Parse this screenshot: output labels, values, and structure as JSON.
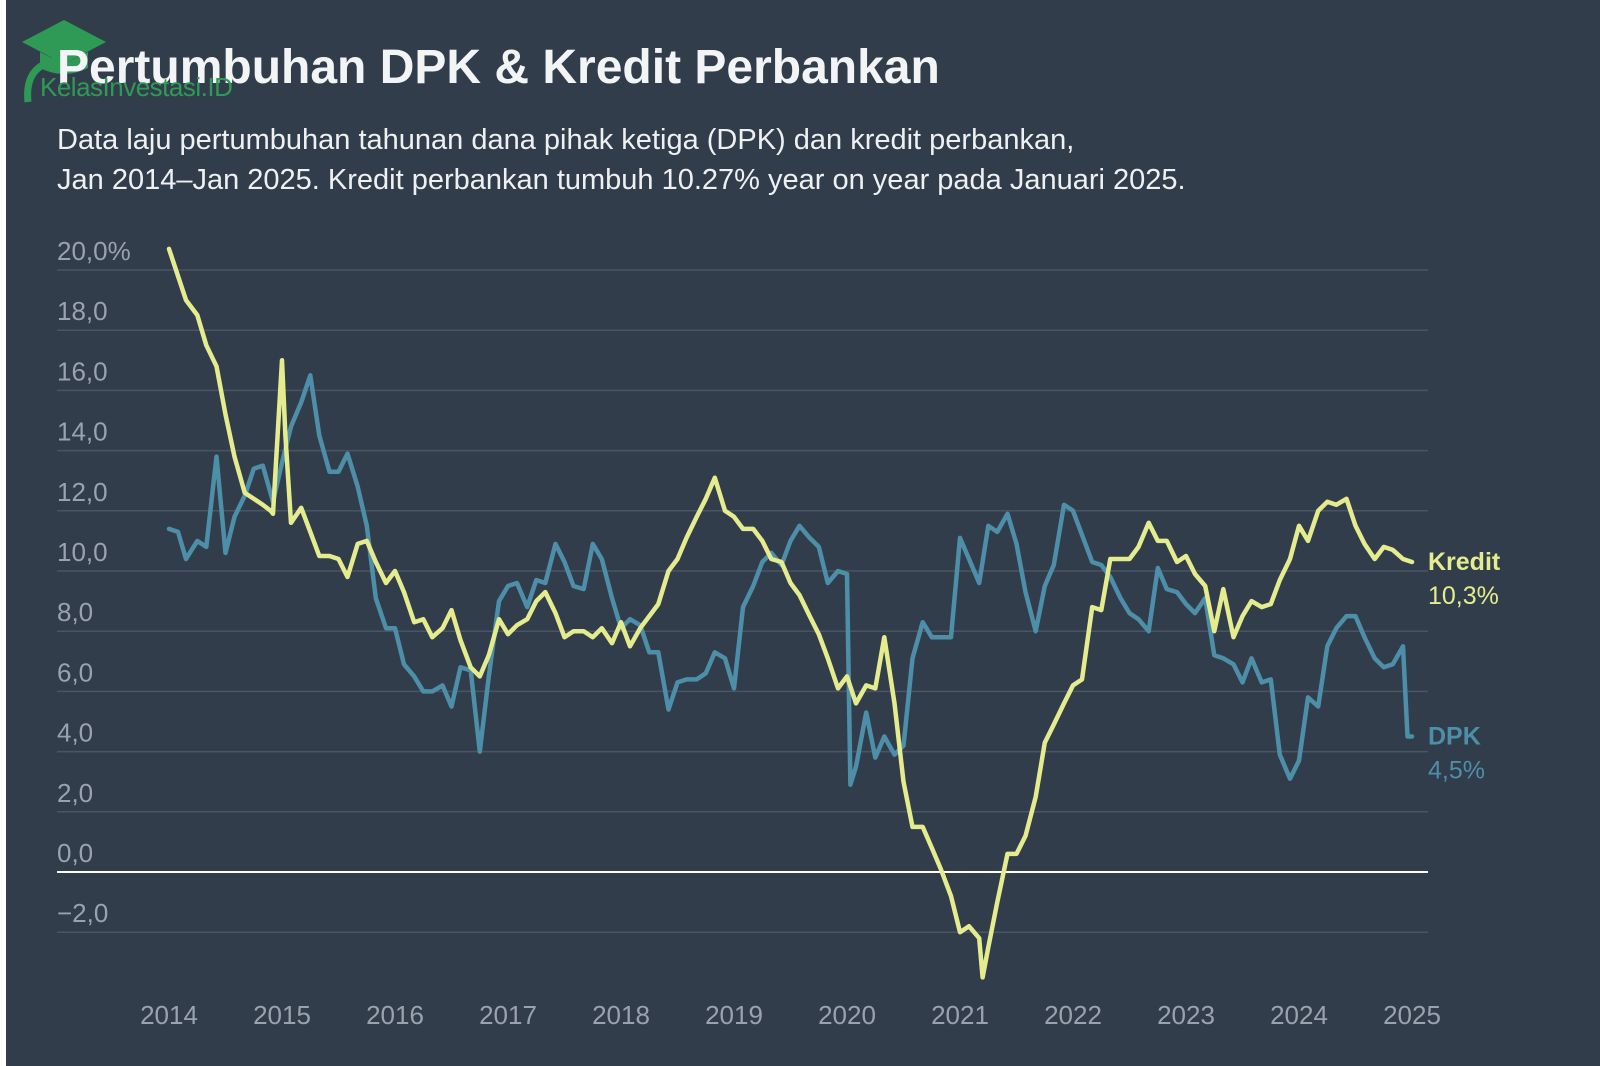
{
  "header": {
    "logo_text": "KelasInvestasi.ID",
    "title": "Pertumbuhan DPK & Kredit Perbankan",
    "subtitle_line1": "Data laju pertumbuhan tahunan dana pihak ketiga (DPK) dan kredit perbankan,",
    "subtitle_line2": "Jan 2014–Jan 2025. Kredit perbankan tumbuh 10.27% year on year pada Januari 2025."
  },
  "colors": {
    "background": "#323d4b",
    "kredit": "#e5ec8e",
    "dpk": "#4d8ea8",
    "grid": "#4a5563",
    "zero_line": "#ffffff",
    "tick_text": "#9aa2ad",
    "logo": "#2f9a55"
  },
  "chart_data": {
    "type": "line",
    "title": "Pertumbuhan DPK & Kredit Perbankan",
    "xlabel": "",
    "ylabel": "",
    "xlim": [
      2014,
      2025
    ],
    "ylim": [
      -4,
      21
    ],
    "grid": true,
    "y_ticks": [
      {
        "value": 20,
        "label": "20,0%"
      },
      {
        "value": 18,
        "label": "18,0"
      },
      {
        "value": 16,
        "label": "16,0"
      },
      {
        "value": 14,
        "label": "14,0"
      },
      {
        "value": 12,
        "label": "12,0"
      },
      {
        "value": 10,
        "label": "10,0"
      },
      {
        "value": 8,
        "label": "8,0"
      },
      {
        "value": 6,
        "label": "6,0"
      },
      {
        "value": 4,
        "label": "4,0"
      },
      {
        "value": 2,
        "label": "2,0"
      },
      {
        "value": 0,
        "label": "0,0"
      },
      {
        "value": -2,
        "label": "−2,0"
      }
    ],
    "x_ticks": [
      "2014",
      "2015",
      "2016",
      "2017",
      "2018",
      "2019",
      "2020",
      "2021",
      "2022",
      "2023",
      "2024",
      "2025"
    ],
    "series": [
      {
        "name": "Kredit",
        "end_label": "10,3%",
        "color": "#e5ec8e",
        "points": [
          [
            2014.0,
            20.7
          ],
          [
            2014.08,
            19.8
          ],
          [
            2014.15,
            19.0
          ],
          [
            2014.25,
            18.5
          ],
          [
            2014.33,
            17.5
          ],
          [
            2014.42,
            16.8
          ],
          [
            2014.5,
            15.2
          ],
          [
            2014.58,
            13.8
          ],
          [
            2014.67,
            12.6
          ],
          [
            2014.75,
            12.4
          ],
          [
            2014.83,
            12.2
          ],
          [
            2014.9,
            12.0
          ],
          [
            2014.92,
            11.9
          ],
          [
            2015.0,
            17.0
          ],
          [
            2015.03,
            14.5
          ],
          [
            2015.08,
            11.6
          ],
          [
            2015.17,
            12.1
          ],
          [
            2015.25,
            11.3
          ],
          [
            2015.33,
            10.5
          ],
          [
            2015.42,
            10.5
          ],
          [
            2015.5,
            10.4
          ],
          [
            2015.58,
            9.8
          ],
          [
            2015.67,
            10.9
          ],
          [
            2015.75,
            11.0
          ],
          [
            2015.83,
            10.3
          ],
          [
            2015.92,
            9.6
          ],
          [
            2016.0,
            10.0
          ],
          [
            2016.08,
            9.3
          ],
          [
            2016.17,
            8.3
          ],
          [
            2016.25,
            8.4
          ],
          [
            2016.33,
            7.8
          ],
          [
            2016.42,
            8.1
          ],
          [
            2016.5,
            8.7
          ],
          [
            2016.58,
            7.7
          ],
          [
            2016.67,
            6.8
          ],
          [
            2016.75,
            6.5
          ],
          [
            2016.83,
            7.2
          ],
          [
            2016.92,
            8.4
          ],
          [
            2017.0,
            7.9
          ],
          [
            2017.08,
            8.2
          ],
          [
            2017.17,
            8.4
          ],
          [
            2017.25,
            9.0
          ],
          [
            2017.33,
            9.3
          ],
          [
            2017.42,
            8.6
          ],
          [
            2017.5,
            7.8
          ],
          [
            2017.58,
            8.0
          ],
          [
            2017.67,
            8.0
          ],
          [
            2017.75,
            7.8
          ],
          [
            2017.83,
            8.1
          ],
          [
            2017.92,
            7.6
          ],
          [
            2018.0,
            8.3
          ],
          [
            2018.08,
            7.5
          ],
          [
            2018.17,
            8.1
          ],
          [
            2018.25,
            8.5
          ],
          [
            2018.33,
            8.9
          ],
          [
            2018.42,
            10.0
          ],
          [
            2018.5,
            10.4
          ],
          [
            2018.58,
            11.1
          ],
          [
            2018.67,
            11.8
          ],
          [
            2018.75,
            12.4
          ],
          [
            2018.83,
            13.1
          ],
          [
            2018.92,
            12.0
          ],
          [
            2019.0,
            11.8
          ],
          [
            2019.08,
            11.4
          ],
          [
            2019.17,
            11.4
          ],
          [
            2019.25,
            11.0
          ],
          [
            2019.33,
            10.4
          ],
          [
            2019.42,
            10.3
          ],
          [
            2019.5,
            9.6
          ],
          [
            2019.58,
            9.2
          ],
          [
            2019.67,
            8.5
          ],
          [
            2019.75,
            7.9
          ],
          [
            2019.83,
            7.1
          ],
          [
            2019.92,
            6.1
          ],
          [
            2020.0,
            6.5
          ],
          [
            2020.08,
            5.6
          ],
          [
            2020.17,
            6.2
          ],
          [
            2020.25,
            6.1
          ],
          [
            2020.33,
            7.8
          ],
          [
            2020.42,
            5.6
          ],
          [
            2020.5,
            3.0
          ],
          [
            2020.58,
            1.5
          ],
          [
            2020.67,
            1.5
          ],
          [
            2020.75,
            0.8
          ],
          [
            2020.83,
            0.1
          ],
          [
            2020.92,
            -0.8
          ],
          [
            2021.0,
            -2.0
          ],
          [
            2021.08,
            -1.8
          ],
          [
            2021.17,
            -2.2
          ],
          [
            2021.2,
            -3.5
          ],
          [
            2021.25,
            -2.5
          ],
          [
            2021.33,
            -1.0
          ],
          [
            2021.42,
            0.6
          ],
          [
            2021.5,
            0.6
          ],
          [
            2021.58,
            1.2
          ],
          [
            2021.67,
            2.5
          ],
          [
            2021.75,
            4.3
          ],
          [
            2021.83,
            4.9
          ],
          [
            2021.92,
            5.6
          ],
          [
            2022.0,
            6.2
          ],
          [
            2022.08,
            6.4
          ],
          [
            2022.17,
            8.8
          ],
          [
            2022.25,
            8.7
          ],
          [
            2022.33,
            10.4
          ],
          [
            2022.42,
            10.4
          ],
          [
            2022.5,
            10.4
          ],
          [
            2022.58,
            10.8
          ],
          [
            2022.67,
            11.6
          ],
          [
            2022.75,
            11.0
          ],
          [
            2022.83,
            11.0
          ],
          [
            2022.92,
            10.3
          ],
          [
            2023.0,
            10.5
          ],
          [
            2023.08,
            9.9
          ],
          [
            2023.17,
            9.5
          ],
          [
            2023.25,
            8.0
          ],
          [
            2023.33,
            9.4
          ],
          [
            2023.42,
            7.8
          ],
          [
            2023.5,
            8.5
          ],
          [
            2023.58,
            9.0
          ],
          [
            2023.67,
            8.8
          ],
          [
            2023.75,
            8.9
          ],
          [
            2023.83,
            9.7
          ],
          [
            2023.92,
            10.4
          ],
          [
            2024.0,
            11.5
          ],
          [
            2024.08,
            11.0
          ],
          [
            2024.17,
            12.0
          ],
          [
            2024.25,
            12.3
          ],
          [
            2024.33,
            12.2
          ],
          [
            2024.42,
            12.4
          ],
          [
            2024.5,
            11.5
          ],
          [
            2024.58,
            10.9
          ],
          [
            2024.67,
            10.4
          ],
          [
            2024.75,
            10.8
          ],
          [
            2024.83,
            10.7
          ],
          [
            2024.92,
            10.4
          ],
          [
            2025.0,
            10.3
          ]
        ]
      },
      {
        "name": "DPK",
        "end_label": "4,5%",
        "color": "#4d8ea8",
        "points": [
          [
            2014.0,
            11.4
          ],
          [
            2014.08,
            11.3
          ],
          [
            2014.15,
            10.4
          ],
          [
            2014.25,
            11.0
          ],
          [
            2014.33,
            10.8
          ],
          [
            2014.42,
            13.8
          ],
          [
            2014.5,
            10.6
          ],
          [
            2014.58,
            11.8
          ],
          [
            2014.67,
            12.5
          ],
          [
            2014.75,
            13.4
          ],
          [
            2014.83,
            13.5
          ],
          [
            2014.92,
            12.3
          ],
          [
            2015.0,
            13.6
          ],
          [
            2015.08,
            14.8
          ],
          [
            2015.17,
            15.6
          ],
          [
            2015.25,
            16.5
          ],
          [
            2015.33,
            14.5
          ],
          [
            2015.42,
            13.3
          ],
          [
            2015.5,
            13.3
          ],
          [
            2015.58,
            13.9
          ],
          [
            2015.67,
            12.8
          ],
          [
            2015.75,
            11.5
          ],
          [
            2015.83,
            9.1
          ],
          [
            2015.92,
            8.1
          ],
          [
            2016.0,
            8.1
          ],
          [
            2016.08,
            6.9
          ],
          [
            2016.17,
            6.5
          ],
          [
            2016.25,
            6.0
          ],
          [
            2016.33,
            6.0
          ],
          [
            2016.42,
            6.2
          ],
          [
            2016.5,
            5.5
          ],
          [
            2016.58,
            6.8
          ],
          [
            2016.67,
            6.7
          ],
          [
            2016.75,
            4.0
          ],
          [
            2016.83,
            6.5
          ],
          [
            2016.92,
            9.0
          ],
          [
            2017.0,
            9.5
          ],
          [
            2017.08,
            9.6
          ],
          [
            2017.17,
            8.8
          ],
          [
            2017.25,
            9.7
          ],
          [
            2017.33,
            9.6
          ],
          [
            2017.42,
            10.9
          ],
          [
            2017.5,
            10.3
          ],
          [
            2017.58,
            9.5
          ],
          [
            2017.67,
            9.4
          ],
          [
            2017.75,
            10.9
          ],
          [
            2017.83,
            10.4
          ],
          [
            2017.92,
            9.1
          ],
          [
            2018.0,
            8.1
          ],
          [
            2018.08,
            8.4
          ],
          [
            2018.17,
            8.2
          ],
          [
            2018.25,
            7.3
          ],
          [
            2018.33,
            7.3
          ],
          [
            2018.42,
            5.4
          ],
          [
            2018.5,
            6.3
          ],
          [
            2018.58,
            6.4
          ],
          [
            2018.67,
            6.4
          ],
          [
            2018.75,
            6.6
          ],
          [
            2018.83,
            7.3
          ],
          [
            2018.92,
            7.1
          ],
          [
            2019.0,
            6.1
          ],
          [
            2019.08,
            8.8
          ],
          [
            2019.17,
            9.5
          ],
          [
            2019.25,
            10.3
          ],
          [
            2019.33,
            10.6
          ],
          [
            2019.42,
            10.2
          ],
          [
            2019.5,
            11.0
          ],
          [
            2019.58,
            11.5
          ],
          [
            2019.67,
            11.1
          ],
          [
            2019.75,
            10.8
          ],
          [
            2019.83,
            9.6
          ],
          [
            2019.92,
            10.0
          ],
          [
            2020.0,
            9.9
          ],
          [
            2020.03,
            2.9
          ],
          [
            2020.08,
            3.5
          ],
          [
            2020.17,
            5.3
          ],
          [
            2020.25,
            3.8
          ],
          [
            2020.33,
            4.5
          ],
          [
            2020.42,
            3.9
          ],
          [
            2020.5,
            4.2
          ],
          [
            2020.58,
            7.1
          ],
          [
            2020.67,
            8.3
          ],
          [
            2020.75,
            7.8
          ],
          [
            2020.83,
            7.8
          ],
          [
            2020.92,
            7.8
          ],
          [
            2021.0,
            11.1
          ],
          [
            2021.08,
            10.4
          ],
          [
            2021.17,
            9.6
          ],
          [
            2021.25,
            11.5
          ],
          [
            2021.33,
            11.3
          ],
          [
            2021.42,
            11.9
          ],
          [
            2021.5,
            10.9
          ],
          [
            2021.58,
            9.3
          ],
          [
            2021.67,
            8.0
          ],
          [
            2021.75,
            9.5
          ],
          [
            2021.83,
            10.2
          ],
          [
            2021.92,
            12.2
          ],
          [
            2022.0,
            12.0
          ],
          [
            2022.08,
            11.2
          ],
          [
            2022.17,
            10.3
          ],
          [
            2022.25,
            10.2
          ],
          [
            2022.33,
            9.8
          ],
          [
            2022.42,
            9.1
          ],
          [
            2022.5,
            8.6
          ],
          [
            2022.58,
            8.4
          ],
          [
            2022.67,
            8.0
          ],
          [
            2022.75,
            10.1
          ],
          [
            2022.83,
            9.4
          ],
          [
            2022.92,
            9.3
          ],
          [
            2023.0,
            8.9
          ],
          [
            2023.08,
            8.6
          ],
          [
            2023.17,
            9.1
          ],
          [
            2023.25,
            7.2
          ],
          [
            2023.33,
            7.1
          ],
          [
            2023.42,
            6.9
          ],
          [
            2023.5,
            6.3
          ],
          [
            2023.58,
            7.1
          ],
          [
            2023.67,
            6.3
          ],
          [
            2023.75,
            6.4
          ],
          [
            2023.83,
            3.9
          ],
          [
            2023.92,
            3.1
          ],
          [
            2024.0,
            3.7
          ],
          [
            2024.08,
            5.8
          ],
          [
            2024.17,
            5.5
          ],
          [
            2024.25,
            7.5
          ],
          [
            2024.33,
            8.1
          ],
          [
            2024.42,
            8.5
          ],
          [
            2024.5,
            8.5
          ],
          [
            2024.58,
            7.8
          ],
          [
            2024.67,
            7.1
          ],
          [
            2024.75,
            6.8
          ],
          [
            2024.83,
            6.9
          ],
          [
            2024.92,
            7.5
          ],
          [
            2024.96,
            4.5
          ],
          [
            2025.0,
            4.5
          ]
        ]
      }
    ]
  }
}
